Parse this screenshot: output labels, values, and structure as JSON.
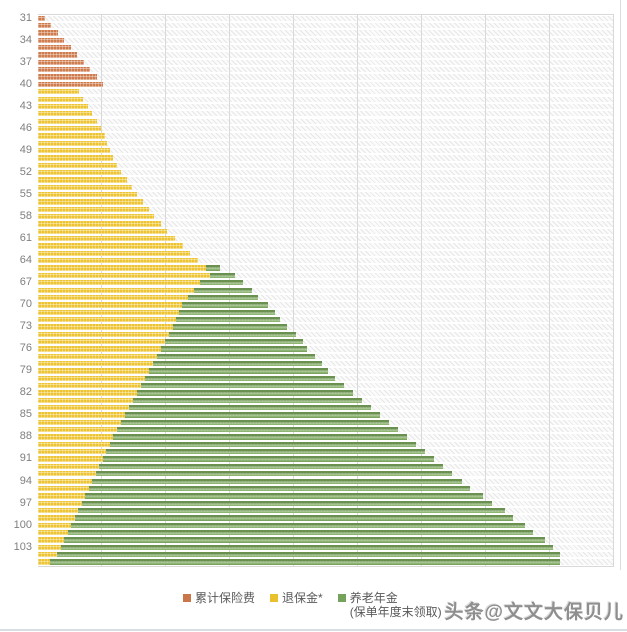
{
  "page": {
    "background": "#ffffff"
  },
  "colors": {
    "premium_orange": "#ce7b4e",
    "surrender_yellow": "#edc32f",
    "annuity_green": "#7ca45e",
    "gridline_gray": "#d9d9d9",
    "tick_label_gray": "#7f7f7f",
    "legend_text_gray": "#595959",
    "plot_hatch_bg": "#fbfbfb"
  },
  "chart_data": {
    "type": "bar",
    "orientation": "horizontal",
    "stacked": true,
    "title": "",
    "xlabel": "",
    "ylabel": "",
    "value_axis": {
      "labels_visible": false,
      "note": "no numeric value axis is shown in the image; series values below are relative lengths estimated from pixels (plot width = 576 units)",
      "max": 576,
      "gridline_divisions": 9,
      "grid": true
    },
    "category_axis": {
      "first": 31,
      "last": 105,
      "tick_step": 3,
      "tick_labels": [
        31,
        34,
        37,
        40,
        43,
        46,
        49,
        52,
        55,
        58,
        61,
        64,
        67,
        70,
        73,
        76,
        79,
        82,
        85,
        88,
        91,
        94,
        97,
        100,
        103
      ]
    },
    "legend_position": "bottom",
    "series": [
      {
        "name": "累计保险费",
        "color": "#ce7b4e",
        "present_ages": "31-40"
      },
      {
        "name": "退保金*",
        "color": "#edc32f",
        "present_ages": "41-105"
      },
      {
        "name": "养老年金 (保单年度末领取)",
        "color": "#7ca45e",
        "present_ages": "65-105"
      }
    ],
    "row_format": [
      "age",
      "累计保险费",
      "退保金*",
      "养老年金"
    ],
    "rows": [
      [
        31,
        7,
        0,
        0
      ],
      [
        32,
        13,
        0,
        0
      ],
      [
        33,
        20,
        0,
        0
      ],
      [
        34,
        26,
        0,
        0
      ],
      [
        35,
        33,
        0,
        0
      ],
      [
        36,
        39,
        0,
        0
      ],
      [
        37,
        46,
        0,
        0
      ],
      [
        38,
        52,
        0,
        0
      ],
      [
        39,
        59,
        0,
        0
      ],
      [
        40,
        65,
        0,
        0
      ],
      [
        41,
        0,
        41,
        0
      ],
      [
        42,
        0,
        45,
        0
      ],
      [
        43,
        0,
        50,
        0
      ],
      [
        44,
        0,
        54,
        0
      ],
      [
        45,
        0,
        59,
        0
      ],
      [
        46,
        0,
        63,
        0
      ],
      [
        47,
        0,
        67,
        0
      ],
      [
        48,
        0,
        69,
        0
      ],
      [
        49,
        0,
        72,
        0
      ],
      [
        50,
        0,
        75,
        0
      ],
      [
        51,
        0,
        79,
        0
      ],
      [
        52,
        0,
        83,
        0
      ],
      [
        53,
        0,
        89,
        0
      ],
      [
        54,
        0,
        94,
        0
      ],
      [
        55,
        0,
        99,
        0
      ],
      [
        56,
        0,
        105,
        0
      ],
      [
        57,
        0,
        111,
        0
      ],
      [
        58,
        0,
        116,
        0
      ],
      [
        59,
        0,
        123,
        0
      ],
      [
        60,
        0,
        129,
        0
      ],
      [
        61,
        0,
        137,
        0
      ],
      [
        62,
        0,
        145,
        0
      ],
      [
        63,
        0,
        152,
        0
      ],
      [
        64,
        0,
        160,
        0
      ],
      [
        65,
        0,
        168,
        14
      ],
      [
        66,
        0,
        172,
        25
      ],
      [
        67,
        0,
        162,
        43
      ],
      [
        68,
        0,
        156,
        58
      ],
      [
        69,
        0,
        150,
        70
      ],
      [
        70,
        0,
        144,
        86
      ],
      [
        71,
        0,
        141,
        96
      ],
      [
        72,
        0,
        138,
        104
      ],
      [
        73,
        0,
        135,
        114
      ],
      [
        74,
        0,
        131,
        127
      ],
      [
        75,
        0,
        127,
        138
      ],
      [
        76,
        0,
        123,
        146
      ],
      [
        77,
        0,
        119,
        158
      ],
      [
        78,
        0,
        115,
        169
      ],
      [
        79,
        0,
        111,
        179
      ],
      [
        80,
        0,
        107,
        190
      ],
      [
        81,
        0,
        103,
        203
      ],
      [
        82,
        0,
        99,
        216
      ],
      [
        83,
        0,
        95,
        229
      ],
      [
        84,
        0,
        91,
        242
      ],
      [
        85,
        0,
        87,
        255
      ],
      [
        86,
        0,
        83,
        268
      ],
      [
        87,
        0,
        79,
        281
      ],
      [
        88,
        0,
        75,
        294
      ],
      [
        89,
        0,
        72,
        306
      ],
      [
        90,
        0,
        68,
        319
      ],
      [
        91,
        0,
        65,
        331
      ],
      [
        92,
        0,
        61,
        344
      ],
      [
        93,
        0,
        58,
        356
      ],
      [
        94,
        0,
        54,
        370
      ],
      [
        95,
        0,
        51,
        381
      ],
      [
        96,
        0,
        47,
        398
      ],
      [
        97,
        0,
        44,
        410
      ],
      [
        98,
        0,
        40,
        427
      ],
      [
        99,
        0,
        37,
        438
      ],
      [
        100,
        0,
        33,
        454
      ],
      [
        101,
        0,
        30,
        465
      ],
      [
        102,
        0,
        26,
        481
      ],
      [
        103,
        0,
        23,
        492
      ],
      [
        104,
        0,
        19,
        503
      ],
      [
        105,
        0,
        12,
        510
      ]
    ]
  },
  "legend": {
    "items": [
      {
        "label": "累计保险费",
        "color": "#c9764b"
      },
      {
        "label": "退保金*",
        "color": "#e8c02c"
      },
      {
        "label": "养老年金",
        "sublabel": "(保单年度末领取)",
        "color": "#76a35c"
      }
    ]
  },
  "watermark": {
    "text": "头条@文文大保贝儿"
  }
}
